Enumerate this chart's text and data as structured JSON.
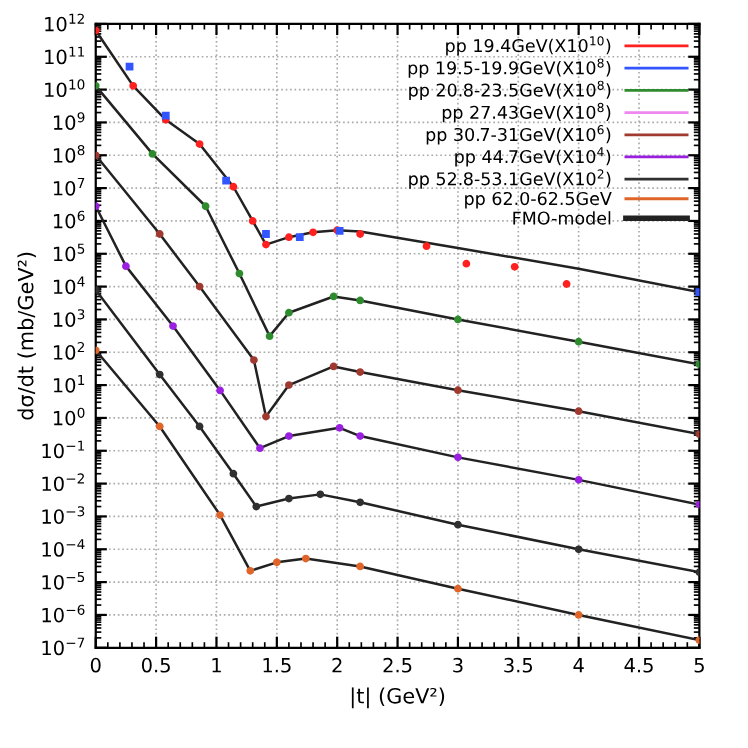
{
  "chart_data": {
    "type": "scatter",
    "xlabel": "|t| (GeV²)",
    "ylabel": "dσ/dt (mb/GeV²)",
    "xlim": [
      0,
      5
    ],
    "xticks": [
      0,
      0.5,
      1,
      1.5,
      2,
      2.5,
      3,
      3.5,
      4,
      4.5,
      5
    ],
    "ylim": [
      1e-07,
      1000000000000.0
    ],
    "log": "y",
    "yticks": [
      {
        "value": 1e-07,
        "label": "10$^{−7}$"
      },
      {
        "value": 1e-06,
        "label": "10$^{−6}$"
      },
      {
        "value": 1e-05,
        "label": "10$^{−5}$"
      },
      {
        "value": 0.0001,
        "label": "10$^{−4}$"
      },
      {
        "value": 0.001,
        "label": "10$^{−3}$"
      },
      {
        "value": 0.01,
        "label": "10$^{−2}$"
      },
      {
        "value": 0.1,
        "label": "10$^{−1}$"
      },
      {
        "value": 1,
        "label": "10$^{0}$"
      },
      {
        "value": 10,
        "label": "10$^{1}$"
      },
      {
        "value": 100,
        "label": "10$^{2}$"
      },
      {
        "value": 1000.0,
        "label": "10$^{3}$"
      },
      {
        "value": 10000.0,
        "label": "10$^{4}$"
      },
      {
        "value": 100000.0,
        "label": "10$^{5}$"
      },
      {
        "value": 1000000.0,
        "label": "10$^{6}$"
      },
      {
        "value": 10000000.0,
        "label": "10$^{7}$"
      },
      {
        "value": 100000000.0,
        "label": "10$^{8}$"
      },
      {
        "value": 1000000000.0,
        "label": "10$^{9}$"
      },
      {
        "value": 10000000000.0,
        "label": "10$^{10}$"
      },
      {
        "value": 100000000000.0,
        "label": "10$^{11}$"
      },
      {
        "value": 1000000000000.0,
        "label": "10$^{12}$"
      }
    ],
    "grid": true,
    "legend": "top right",
    "marker": "circle",
    "series": [
      {
        "name": "pp 19.4GeV(X10$^{10}$)",
        "color": "#ff2020",
        "x": [
          0,
          0.31,
          0.58,
          0.86,
          1.14,
          1.3,
          1.41,
          1.6,
          1.8,
          2.0,
          2.19,
          2.74,
          3.07,
          3.47,
          3.9
        ],
        "values": [
          630000000000.0,
          13000000000.0,
          1200000000.0,
          220000000.0,
          11000000.0,
          1000000.0,
          190000.0,
          320000.0,
          450000.0,
          520000.0,
          400000.0,
          170000.0,
          50000.0,
          40000.0,
          12000.0
        ]
      },
      {
        "name": "pp 19.5-19.9GeV(X10$^{8}$)",
        "color": "#3355ff",
        "marker": "square",
        "x": [
          0.28,
          0.58,
          1.08,
          1.41,
          1.69,
          2.02,
          5.0
        ],
        "values": [
          50000000000.0,
          1600000000.0,
          17000000.0,
          400000.0,
          320000.0,
          500000.0,
          6800.0
        ]
      },
      {
        "name": "pp 20.8-23.5GeV(X10$^{8}$)",
        "color": "#2e8b2e",
        "x": [
          0,
          0.47,
          0.91,
          1.19,
          1.44,
          1.6,
          1.97,
          2.19,
          3.0,
          4.0,
          5.0
        ],
        "values": [
          13000000000.0,
          110000000.0,
          2800000.0,
          25000.0,
          310,
          1600,
          5000,
          3800,
          1000,
          210,
          43
        ]
      },
      {
        "name": "pp 27.43GeV(X10$^{8}$)",
        "color": "#ee88ee"
      },
      {
        "name": "pp 30.7-31GeV(X10$^{6}$)",
        "color": "#a03a30",
        "x": [
          0,
          0.53,
          0.86,
          1.31,
          1.41,
          1.6,
          1.97,
          2.19,
          3.0,
          4.0,
          5.0
        ],
        "values": [
          100000000.0,
          400000.0,
          10000.0,
          58,
          1.1,
          10,
          37,
          25,
          7,
          1.6,
          0.32
        ]
      },
      {
        "name": "pp 44.7GeV(X10$^{4}$)",
        "color": "#9a20e0",
        "x": [
          0,
          0.25,
          0.64,
          1.03,
          1.36,
          1.6,
          2.02,
          2.19,
          3.0,
          4.0,
          5.0
        ],
        "values": [
          2800000.0,
          42000.0,
          630,
          6.9,
          0.12,
          0.28,
          0.5,
          0.28,
          0.063,
          0.013,
          0.0023
        ]
      },
      {
        "name": "pp 52.8-53.1GeV(X10$^{2}$)",
        "color": "#303030",
        "x": [
          0,
          0.53,
          0.86,
          1.14,
          1.33,
          1.6,
          1.86,
          2.19,
          3.0,
          4.0,
          5.0
        ],
        "values": [
          7900,
          21,
          0.55,
          0.02,
          0.002,
          0.0035,
          0.0047,
          0.0027,
          0.00056,
          0.0001,
          2e-05
        ]
      },
      {
        "name": "pp 62.0-62.5GeV",
        "color": "#e0652a",
        "x": [
          0,
          0.53,
          1.03,
          1.28,
          1.5,
          1.74,
          2.19,
          3.0,
          4.0,
          5.0
        ],
        "values": [
          115,
          0.55,
          0.0011,
          2.2e-05,
          4e-05,
          5.2e-05,
          3e-05,
          6.3e-06,
          1e-06,
          1.7e-07
        ]
      },
      {
        "name": "FMO-model",
        "type": "line",
        "marker": "none",
        "color": "#222222",
        "x": [
          0,
          0.31,
          0.58,
          0.86,
          1.14,
          1.3,
          1.41,
          1.6,
          1.8,
          2.0,
          2.19,
          3.0,
          4.0,
          5.0
        ],
        "values": [
          630000000000.0,
          13000000000.0,
          1200000000.0,
          220000000.0,
          11000000.0,
          1000000.0,
          190000.0,
          320000.0,
          450000.0,
          520000.0,
          480000.0,
          150000.0,
          35000.0,
          6800.0
        ]
      },
      {
        "type": "line",
        "marker": "none",
        "color": "#222222",
        "x": [
          0,
          0.47,
          0.91,
          1.19,
          1.44,
          1.6,
          1.97,
          2.19,
          3.0,
          4.0,
          5.0
        ],
        "values": [
          13000000000.0,
          110000000.0,
          2800000.0,
          25000.0,
          310,
          1600,
          5000,
          3800,
          1000,
          210,
          43
        ]
      },
      {
        "type": "line",
        "marker": "none",
        "color": "#222222",
        "x": [
          0,
          0.53,
          0.86,
          1.31,
          1.41,
          1.6,
          1.97,
          2.19,
          3.0,
          4.0,
          5.0
        ],
        "values": [
          100000000.0,
          400000.0,
          10000.0,
          58,
          1.1,
          10,
          37,
          25,
          7,
          1.6,
          0.32
        ]
      },
      {
        "type": "line",
        "marker": "none",
        "color": "#222222",
        "x": [
          0,
          0.25,
          0.64,
          1.03,
          1.36,
          1.6,
          2.02,
          2.19,
          3.0,
          4.0,
          5.0
        ],
        "values": [
          2800000.0,
          42000.0,
          630,
          6.9,
          0.12,
          0.28,
          0.5,
          0.28,
          0.063,
          0.013,
          0.0023
        ]
      },
      {
        "type": "line",
        "marker": "none",
        "color": "#222222",
        "x": [
          0,
          0.53,
          0.86,
          1.14,
          1.33,
          1.6,
          1.86,
          2.19,
          3.0,
          4.0,
          5.0
        ],
        "values": [
          7900,
          21,
          0.55,
          0.02,
          0.002,
          0.0035,
          0.0047,
          0.0027,
          0.00056,
          0.0001,
          2e-05
        ]
      },
      {
        "type": "line",
        "marker": "none",
        "color": "#222222",
        "x": [
          0,
          0.53,
          1.03,
          1.28,
          1.5,
          1.74,
          2.19,
          3.0,
          4.0,
          5.0
        ],
        "values": [
          115,
          0.55,
          0.0011,
          2.2e-05,
          4e-05,
          5.2e-05,
          3e-05,
          6.3e-06,
          1e-06,
          1.7e-07
        ]
      }
    ]
  }
}
